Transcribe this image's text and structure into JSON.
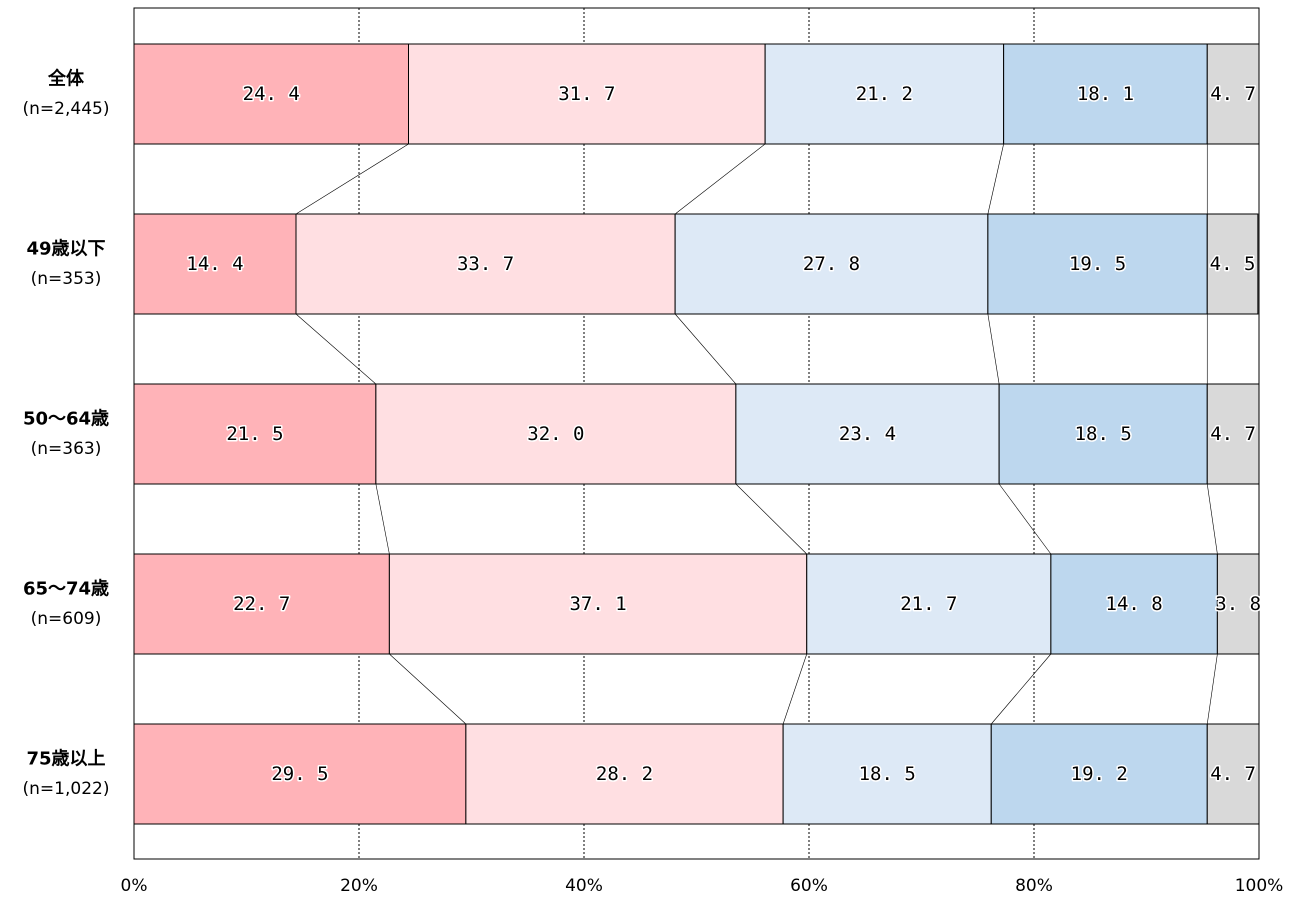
{
  "chart_data": {
    "type": "bar",
    "orientation": "horizontal",
    "stacked": true,
    "percent_stacked": true,
    "categories": [
      {
        "name": "全体",
        "n": "(n=2,445)"
      },
      {
        "name": "49歳以下",
        "n": "(n=353)"
      },
      {
        "name": "50～64歳",
        "n": "(n=363)"
      },
      {
        "name": "65～74歳",
        "n": "(n=609)"
      },
      {
        "name": "75歳以上",
        "n": "(n=1,022)"
      }
    ],
    "series": [
      {
        "color": "#ffb3b8",
        "values": [
          24.4,
          14.4,
          21.5,
          22.7,
          29.5
        ]
      },
      {
        "color": "#ffdfe2",
        "values": [
          31.7,
          33.7,
          32.0,
          37.1,
          28.2
        ]
      },
      {
        "color": "#dde9f6",
        "values": [
          21.2,
          27.8,
          23.4,
          21.7,
          18.5
        ]
      },
      {
        "color": "#bdd7ee",
        "values": [
          18.1,
          19.5,
          18.5,
          14.8,
          19.2
        ]
      },
      {
        "color": "#d9d9d9",
        "values": [
          4.7,
          4.5,
          4.7,
          3.8,
          4.7
        ]
      }
    ],
    "value_labels": [
      [
        "24. 4",
        "31. 7",
        "21. 2",
        "18. 1",
        "4. 7"
      ],
      [
        "14. 4",
        "33. 7",
        "27. 8",
        "19. 5",
        "4. 5"
      ],
      [
        "21. 5",
        "32. 0",
        "23. 4",
        "18. 5",
        "4. 7"
      ],
      [
        "22. 7",
        "37. 1",
        "21. 7",
        "14. 8",
        "3. 8"
      ],
      [
        "29. 5",
        "28. 2",
        "18. 5",
        "19. 2",
        "4. 7"
      ]
    ],
    "x_ticks": [
      "0%",
      "20%",
      "40%",
      "60%",
      "80%",
      "100%"
    ],
    "xlim": [
      0,
      100
    ],
    "grid": "vertical dotted",
    "series_lines": true
  }
}
